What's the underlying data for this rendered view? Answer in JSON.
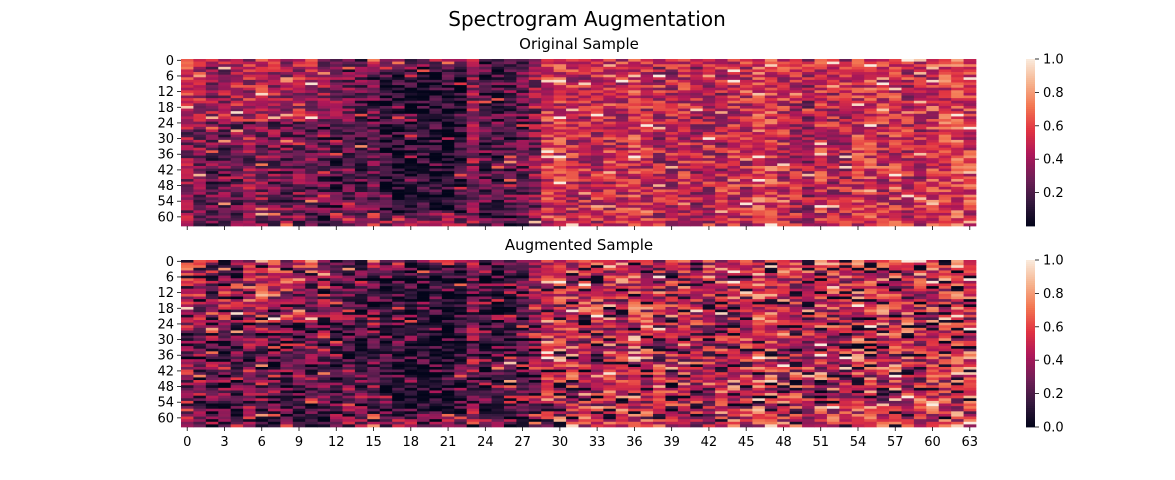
{
  "figure": {
    "title": "Spectrogram Augmentation"
  },
  "colormap": {
    "name": "rocket",
    "stops": [
      "#03051a",
      "#35193e",
      "#701f57",
      "#ad1759",
      "#e13342",
      "#f37651",
      "#f6b48f",
      "#faebdd"
    ]
  },
  "chart_data": [
    {
      "type": "heatmap",
      "title": "Original Sample",
      "rows": 64,
      "cols": 64,
      "y_ticks": [
        "0",
        "6",
        "12",
        "18",
        "24",
        "30",
        "36",
        "42",
        "48",
        "54",
        "60"
      ],
      "x_tick_labels_shown": false,
      "colorbar": {
        "ticks": [
          "0.2",
          "0.4",
          "0.6",
          "0.8",
          "1.0"
        ],
        "vmin": 0.0,
        "vmax": 1.0
      },
      "values_note": "",
      "region_means_by_column": [
        0.45,
        0.42,
        0.35,
        0.33,
        0.38,
        0.4,
        0.42,
        0.38,
        0.36,
        0.4,
        0.38,
        0.3,
        0.25,
        0.26,
        0.24,
        0.22,
        0.1,
        0.08,
        0.08,
        0.07,
        0.08,
        0.09,
        0.1,
        0.35,
        0.2,
        0.2,
        0.22,
        0.25,
        0.32,
        0.55,
        0.55,
        0.5,
        0.48,
        0.5,
        0.52,
        0.5,
        0.55,
        0.5,
        0.45,
        0.45,
        0.5,
        0.45,
        0.48,
        0.45,
        0.5,
        0.48,
        0.62,
        0.58,
        0.5,
        0.45,
        0.4,
        0.52,
        0.48,
        0.45,
        0.55,
        0.55,
        0.5,
        0.52,
        0.48,
        0.48,
        0.55,
        0.58,
        0.6,
        0.55
      ]
    },
    {
      "type": "heatmap",
      "title": "Augmented Sample",
      "rows": 64,
      "cols": 64,
      "y_ticks": [
        "0",
        "6",
        "12",
        "18",
        "24",
        "30",
        "36",
        "42",
        "48",
        "54",
        "60"
      ],
      "x_ticks": [
        "0",
        "3",
        "6",
        "9",
        "12",
        "15",
        "18",
        "21",
        "24",
        "27",
        "30",
        "33",
        "36",
        "39",
        "42",
        "45",
        "48",
        "51",
        "54",
        "57",
        "60",
        "63"
      ],
      "colorbar": {
        "ticks": [
          "0.0",
          "0.2",
          "0.4",
          "0.6",
          "0.8",
          "1.0"
        ],
        "vmin": 0.0,
        "vmax": 1.0
      },
      "augmentation": "original plus per-cell noise"
    }
  ]
}
